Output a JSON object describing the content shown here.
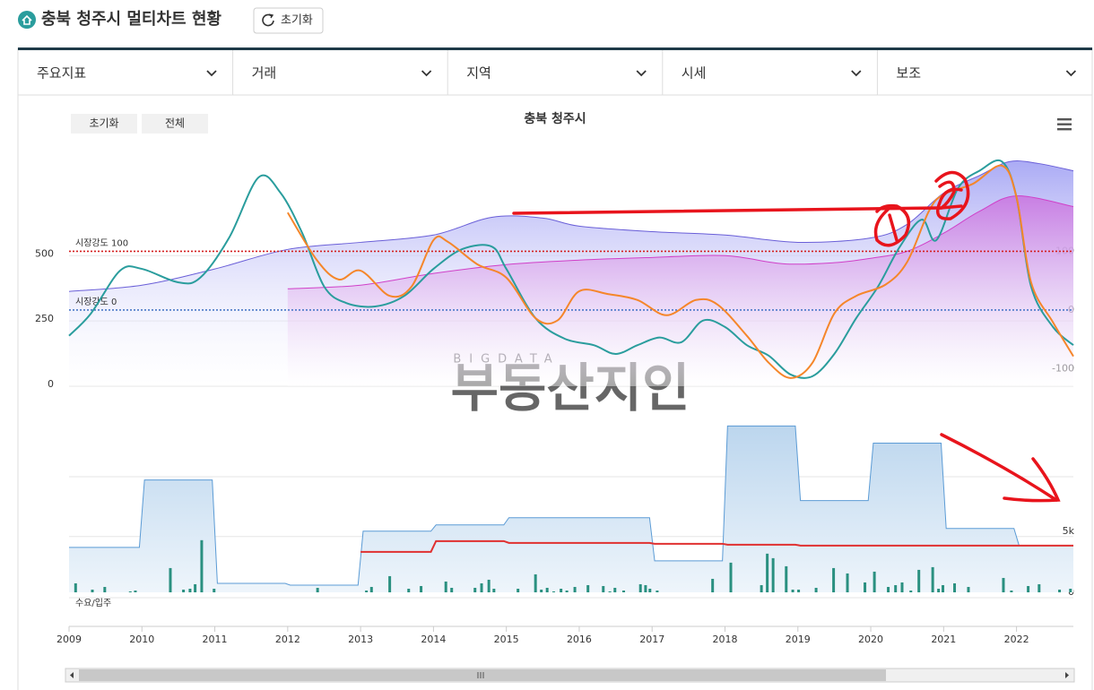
{
  "header": {
    "title": "충북 청주시 멀티차트 현황",
    "reset_button": "초기화"
  },
  "tabs": [
    "주요지표",
    "거래",
    "지역",
    "시세",
    "보조"
  ],
  "chart_data": [
    {
      "type": "line",
      "title": "충북 청주시",
      "buttons": [
        "초기화",
        "전체"
      ],
      "watermark": {
        "small": "BIGDATA",
        "large": "부동산지인"
      },
      "xlim": [
        2009,
        2022.78
      ],
      "ylim": [
        0,
        930
      ],
      "yticks": [
        0,
        250,
        500
      ],
      "y2lim": [
        -130,
        284
      ],
      "y2ticks": [
        -100,
        0,
        100
      ],
      "grid": true,
      "reference_lines": [
        {
          "label": "시장강도 100",
          "value": 100,
          "axis": "y2",
          "color": "#d42020"
        },
        {
          "label": "시장강도 0",
          "value": 0,
          "axis": "y2",
          "color": "#4a78c8"
        }
      ],
      "series": [
        {
          "type": "area",
          "color": "#6a5fd8",
          "fill": "#a6a6f4",
          "x": [
            2009,
            2010,
            2011,
            2012,
            2013,
            2014,
            2014.8,
            2015.5,
            2016,
            2017,
            2018,
            2019,
            2020,
            2020.5,
            2021,
            2021.5,
            2021.9,
            2022.3,
            2022.78
          ],
          "values": [
            363,
            387,
            449,
            524,
            551,
            579,
            647,
            644,
            613,
            592,
            579,
            551,
            568,
            620,
            740,
            808,
            860,
            853,
            825
          ]
        },
        {
          "type": "area",
          "color": "#d040c8",
          "fill": "#c97be2",
          "x": [
            2012,
            2013,
            2014,
            2015,
            2016,
            2017,
            2018,
            2018.8,
            2019.5,
            2020,
            2020.5,
            2021,
            2021.5,
            2022,
            2022.78
          ],
          "values": [
            373,
            387,
            432,
            466,
            483,
            493,
            500,
            469,
            473,
            490,
            517,
            586,
            671,
            729,
            688
          ]
        },
        {
          "type": "line",
          "axis": "y2",
          "color": "#2a9d9d",
          "x": [
            2009,
            2009.3,
            2009.7,
            2010,
            2010.5,
            2010.8,
            2011.2,
            2011.6,
            2011.9,
            2012.2,
            2012.5,
            2012.8,
            2013.2,
            2013.6,
            2014,
            2014.4,
            2014.8,
            2015,
            2015.4,
            2015.8,
            2016.2,
            2016.5,
            2016.8,
            2017.1,
            2017.4,
            2017.7,
            2018,
            2018.3,
            2018.6,
            2018.9,
            2019.2,
            2019.5,
            2019.8,
            2020.1,
            2020.4,
            2020.7,
            2020.9,
            2021.2,
            2021.5,
            2021.8,
            2022,
            2022.2,
            2022.5,
            2022.78
          ],
          "values": [
            -44,
            -6,
            67,
            70,
            47,
            55,
            124,
            226,
            200,
            131,
            40,
            12,
            6,
            24,
            70,
            104,
            108,
            70,
            -14,
            -49,
            -60,
            -75,
            -60,
            -47,
            -55,
            -18,
            -29,
            -60,
            -78,
            -110,
            -113,
            -75,
            -14,
            40,
            108,
            154,
            119,
            208,
            238,
            253,
            192,
            40,
            -29,
            -60
          ]
        },
        {
          "type": "line",
          "axis": "y2",
          "color": "#f5862a",
          "x": [
            2012,
            2012.4,
            2012.7,
            2013,
            2013.4,
            2013.7,
            2014,
            2014.2,
            2014.6,
            2015,
            2015.4,
            2015.7,
            2016,
            2016.4,
            2016.8,
            2017.2,
            2017.6,
            2017.9,
            2018.3,
            2018.6,
            2018.9,
            2019.2,
            2019.5,
            2019.8,
            2020.2,
            2020.5,
            2020.8,
            2021,
            2021.4,
            2021.8,
            2022,
            2022.2,
            2022.5,
            2022.78
          ],
          "values": [
            166,
            85,
            52,
            67,
            24,
            40,
            119,
            116,
            78,
            55,
            -14,
            -18,
            32,
            27,
            17,
            -9,
            17,
            9,
            -44,
            -90,
            -116,
            -90,
            -6,
            24,
            43,
            82,
            169,
            197,
            215,
            246,
            192,
            47,
            -21,
            -79
          ]
        }
      ]
    },
    {
      "type": "bar",
      "label": "수요/입주",
      "xlim": [
        2009,
        2022.78
      ],
      "xticks": [
        2009,
        2010,
        2011,
        2012,
        2013,
        2014,
        2015,
        2016,
        2017,
        2018,
        2019,
        2020,
        2021,
        2022
      ],
      "ylim": [
        0,
        14000
      ],
      "yticks": [
        0,
        {
          "value": 5000,
          "label": "5k"
        }
      ],
      "grid": true,
      "steps": [
        {
          "type": "step-area",
          "color": "#5b9bd5",
          "fill": "#bcd6ee",
          "x": [
            2009,
            2010,
            2011,
            2012,
            2013,
            2014,
            2015,
            2017,
            2018,
            2019,
            2020,
            2021,
            2022
          ],
          "values": [
            3676,
            9191,
            735,
            588,
            5000,
            5515,
            6103,
            2574,
            13603,
            7500,
            12206,
            5221,
            3824
          ]
        },
        {
          "type": "step-line",
          "color": "#e03030",
          "x": [
            2013,
            2014,
            2015,
            2017,
            2018,
            2019
          ],
          "values": [
            3309,
            4191,
            4044,
            3971,
            3897,
            3824
          ]
        }
      ],
      "bars": {
        "color": "#2a9080",
        "x": [
          2009.09,
          2009.32,
          2009.49,
          2009.84,
          2009.91,
          2010.39,
          2010.57,
          2010.66,
          2010.73,
          2010.82,
          2010.99,
          2012.41,
          2013.08,
          2013.15,
          2013.4,
          2013.66,
          2013.83,
          2014.17,
          2014.25,
          2014.57,
          2014.66,
          2014.76,
          2014.83,
          2015.16,
          2015.4,
          2015.48,
          2015.56,
          2015.65,
          2015.75,
          2015.83,
          2015.94,
          2016.12,
          2016.33,
          2016.42,
          2016.49,
          2016.61,
          2016.84,
          2016.91,
          2016.97,
          2017.07,
          2017.83,
          2018.08,
          2018.5,
          2018.58,
          2018.66,
          2018.84,
          2018.93,
          2019.01,
          2019.25,
          2019.49,
          2019.68,
          2019.92,
          2020.05,
          2020.24,
          2020.34,
          2020.43,
          2020.55,
          2020.66,
          2020.85,
          2020.93,
          2020.99,
          2021.15,
          2021.34,
          2021.82,
          2021.93,
          2022.16,
          2022.31,
          2022.59,
          2022.74
        ],
        "values": [
          735,
          221,
          441,
          74,
          147,
          1985,
          221,
          294,
          662,
          4265,
          294,
          368,
          147,
          441,
          1324,
          294,
          515,
          882,
          368,
          368,
          735,
          1029,
          294,
          294,
          1471,
          221,
          368,
          74,
          294,
          147,
          441,
          588,
          515,
          74,
          368,
          147,
          662,
          588,
          294,
          147,
          1103,
          2426,
          588,
          3162,
          2794,
          2132,
          221,
          221,
          368,
          1985,
          1544,
          809,
          1691,
          441,
          588,
          809,
          147,
          1838,
          2059,
          294,
          588,
          735,
          441,
          1176,
          147,
          515,
          662,
          221,
          294
        ]
      }
    }
  ]
}
